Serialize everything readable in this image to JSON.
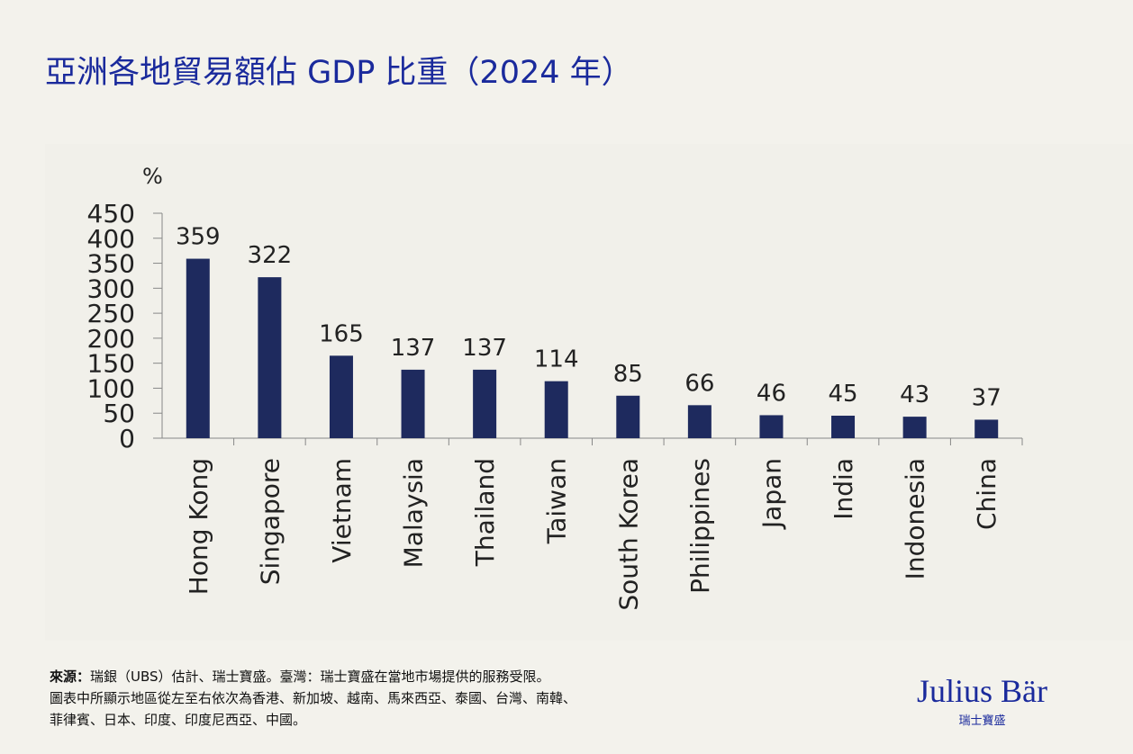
{
  "title": "亞洲各地貿易額佔 GDP 比重（2024 年）",
  "chart_data": {
    "type": "bar",
    "title": "亞洲各地貿易額佔 GDP 比重（2024 年）",
    "ylabel": "%",
    "xlabel": "",
    "ylim": [
      0,
      450
    ],
    "yticks": [
      0,
      50,
      100,
      150,
      200,
      250,
      300,
      350,
      400,
      450
    ],
    "categories": [
      "Hong Kong",
      "Singapore",
      "Vietnam",
      "Malaysia",
      "Thailand",
      "Taiwan",
      "South Korea",
      "Philippines",
      "Japan",
      "India",
      "Indonesia",
      "China"
    ],
    "values": [
      359,
      322,
      165,
      137,
      137,
      114,
      85,
      66,
      46,
      45,
      43,
      37
    ],
    "data_labels": true,
    "grid": false,
    "bar_color": "#1e2a5e"
  },
  "footer": {
    "source_label": "來源：",
    "source_text": "瑞銀（UBS）估計、瑞士寶盛。臺灣：瑞士寶盛在當地市場提供的服務受限。",
    "line2": "圖表中所顯示地區從左至右依次為香港、新加坡、越南、馬來西亞、泰國、台灣、南韓、",
    "line3": "菲律賓、日本、印度、印度尼西亞、中國。"
  },
  "logo": {
    "name": "Julius Bär",
    "sub": "瑞士寶盛"
  },
  "colors": {
    "title": "#1a2a9c",
    "bar": "#1e2a5e",
    "background": "#f3f2ec"
  }
}
